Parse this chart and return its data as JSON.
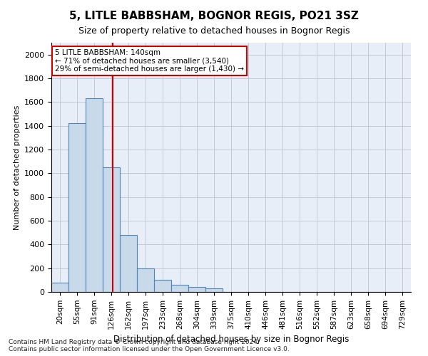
{
  "title": "5, LITLE BABBSHAM, BOGNOR REGIS, PO21 3SZ",
  "subtitle": "Size of property relative to detached houses in Bognor Regis",
  "xlabel": "Distribution of detached houses by size in Bognor Regis",
  "ylabel": "Number of detached properties",
  "categories": [
    "20sqm",
    "55sqm",
    "91sqm",
    "126sqm",
    "162sqm",
    "197sqm",
    "233sqm",
    "268sqm",
    "304sqm",
    "339sqm",
    "375sqm",
    "410sqm",
    "446sqm",
    "481sqm",
    "516sqm",
    "552sqm",
    "587sqm",
    "623sqm",
    "658sqm",
    "694sqm",
    "729sqm"
  ],
  "values": [
    80,
    1420,
    1630,
    1050,
    480,
    200,
    105,
    60,
    45,
    30,
    0,
    0,
    0,
    0,
    0,
    0,
    0,
    0,
    0,
    0,
    0
  ],
  "bar_color": "#c8d9ea",
  "bar_edge_color": "#4f86b8",
  "vline_color": "#cc0000",
  "vline_pos": 3.1,
  "annotation_text": "5 LITLE BABBSHAM: 140sqm\n← 71% of detached houses are smaller (3,540)\n29% of semi-detached houses are larger (1,430) →",
  "annotation_box_color": "#ffffff",
  "annotation_box_edge": "#cc0000",
  "ylim": [
    0,
    2100
  ],
  "yticks": [
    0,
    200,
    400,
    600,
    800,
    1000,
    1200,
    1400,
    1600,
    1800,
    2000
  ],
  "grid_color": "#c8c8d8",
  "footnote": "Contains HM Land Registry data © Crown copyright and database right 2024.\nContains public sector information licensed under the Open Government Licence v3.0.",
  "bg_color": "#e8eef8"
}
